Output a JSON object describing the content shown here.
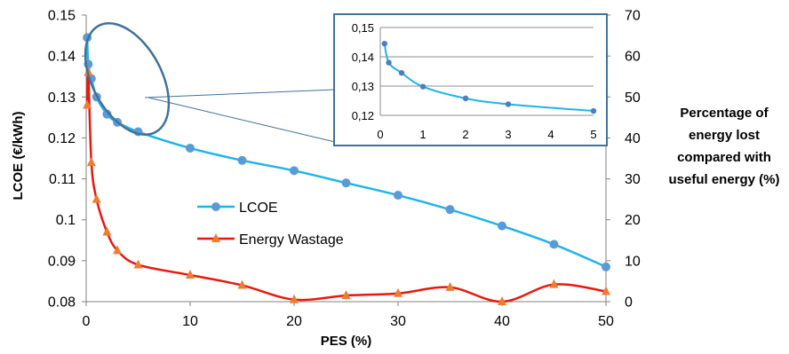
{
  "chart_data": [
    {
      "type": "line",
      "x_label": "PES  (%)",
      "y_label": "LCOE (€/kWh)",
      "y2_label_lines": [
        "Percentage of",
        "energy lost",
        "compared with",
        "useful energy (%)"
      ],
      "xlim": [
        0,
        50
      ],
      "ylim": [
        0.08,
        0.15
      ],
      "y2lim": [
        0,
        70
      ],
      "x_ticks": [
        "0",
        "10",
        "20",
        "30",
        "40",
        "50"
      ],
      "y_ticks": [
        "0.15",
        "0.14",
        "0.13",
        "0.12",
        "0.11",
        "0.1",
        "0.09",
        "0.08"
      ],
      "y2_ticks": [
        "70",
        "60",
        "50",
        "40",
        "30",
        "20",
        "10",
        "0"
      ],
      "legend_position": "center",
      "series": [
        {
          "name": "LCOE",
          "axis": "left",
          "color": "#1fb4e8",
          "marker_color": "#5b9bd5",
          "marker": "circle",
          "x": [
            0.1,
            0.2,
            0.5,
            1,
            2,
            3,
            5,
            10,
            15,
            20,
            25,
            30,
            35,
            40,
            45,
            50
          ],
          "y": [
            0.1445,
            0.138,
            0.1345,
            0.13,
            0.1258,
            0.1238,
            0.1215,
            0.1175,
            0.1145,
            0.112,
            0.109,
            0.106,
            0.1025,
            0.0985,
            0.094,
            0.0885
          ]
        },
        {
          "name": "Energy Wastage",
          "axis": "right",
          "color": "#e8190c",
          "marker_color": "#ed7d31",
          "marker": "triangle",
          "x": [
            0.1,
            0.2,
            0.5,
            1,
            2,
            3,
            5,
            10,
            15,
            20,
            25,
            30,
            35,
            40,
            45,
            50
          ],
          "y": [
            48,
            56,
            34,
            25,
            17,
            12.5,
            9,
            6.5,
            4,
            0.5,
            1.5,
            2,
            3.5,
            0,
            4.2,
            2.5
          ]
        }
      ]
    },
    {
      "type": "line",
      "inset": true,
      "xlim": [
        0,
        5
      ],
      "ylim": [
        0.12,
        0.15
      ],
      "x_ticks": [
        "0",
        "1",
        "2",
        "3",
        "4",
        "5"
      ],
      "y_ticks": [
        "0,15",
        "0,14",
        "0,13",
        "0,12"
      ],
      "grid": "horizontal",
      "series": [
        {
          "name": "LCOE",
          "color": "#1fb4e8",
          "marker_color": "#4a7fc1",
          "x": [
            0.1,
            0.2,
            0.5,
            1,
            2,
            3,
            5
          ],
          "y": [
            0.1445,
            0.138,
            0.1345,
            0.1298,
            0.1258,
            0.1238,
            0.1215
          ]
        }
      ]
    }
  ]
}
